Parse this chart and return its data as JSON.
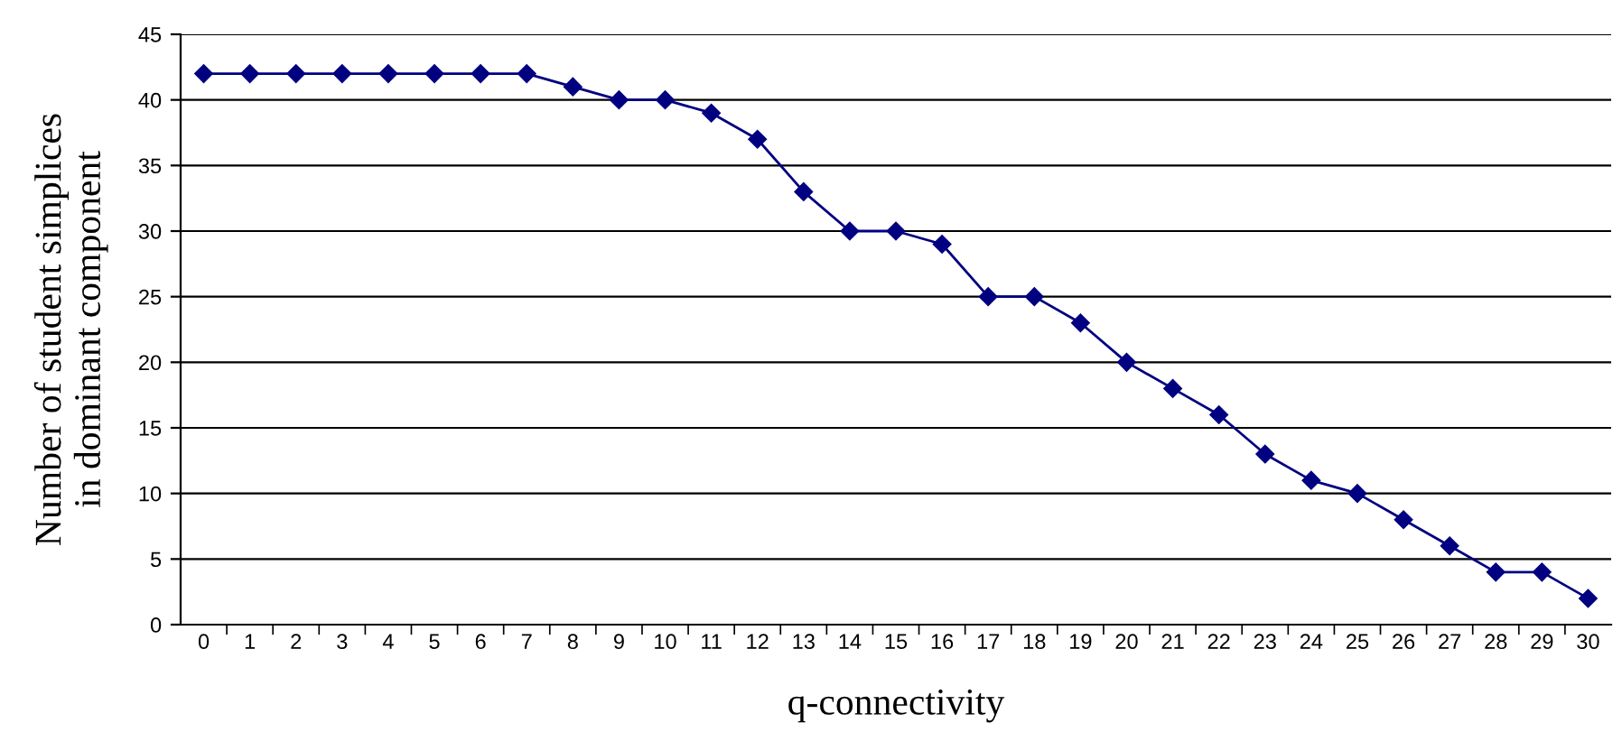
{
  "chart_data": {
    "type": "line",
    "xlabel": "q-connectivity",
    "ylabel": "Number of student simplices\nin dominant component",
    "categories": [
      "0",
      "1",
      "2",
      "3",
      "4",
      "5",
      "6",
      "7",
      "8",
      "9",
      "10",
      "11",
      "12",
      "13",
      "14",
      "15",
      "16",
      "17",
      "18",
      "19",
      "20",
      "21",
      "22",
      "23",
      "24",
      "25",
      "26",
      "27",
      "28",
      "29",
      "30"
    ],
    "series": [
      {
        "color": "#000080",
        "values": [
          42,
          42,
          42,
          42,
          42,
          42,
          42,
          42,
          41,
          40,
          40,
          39,
          37,
          33,
          30,
          30,
          29,
          25,
          25,
          23,
          20,
          18,
          16,
          13,
          11,
          10,
          8,
          6,
          4,
          4,
          2
        ]
      }
    ],
    "ylim": [
      0,
      45
    ],
    "yticks": [
      0,
      5,
      10,
      15,
      20,
      25,
      30,
      35,
      40,
      45
    ],
    "grid": "y",
    "marker": "diamond",
    "line_style": "solid"
  }
}
